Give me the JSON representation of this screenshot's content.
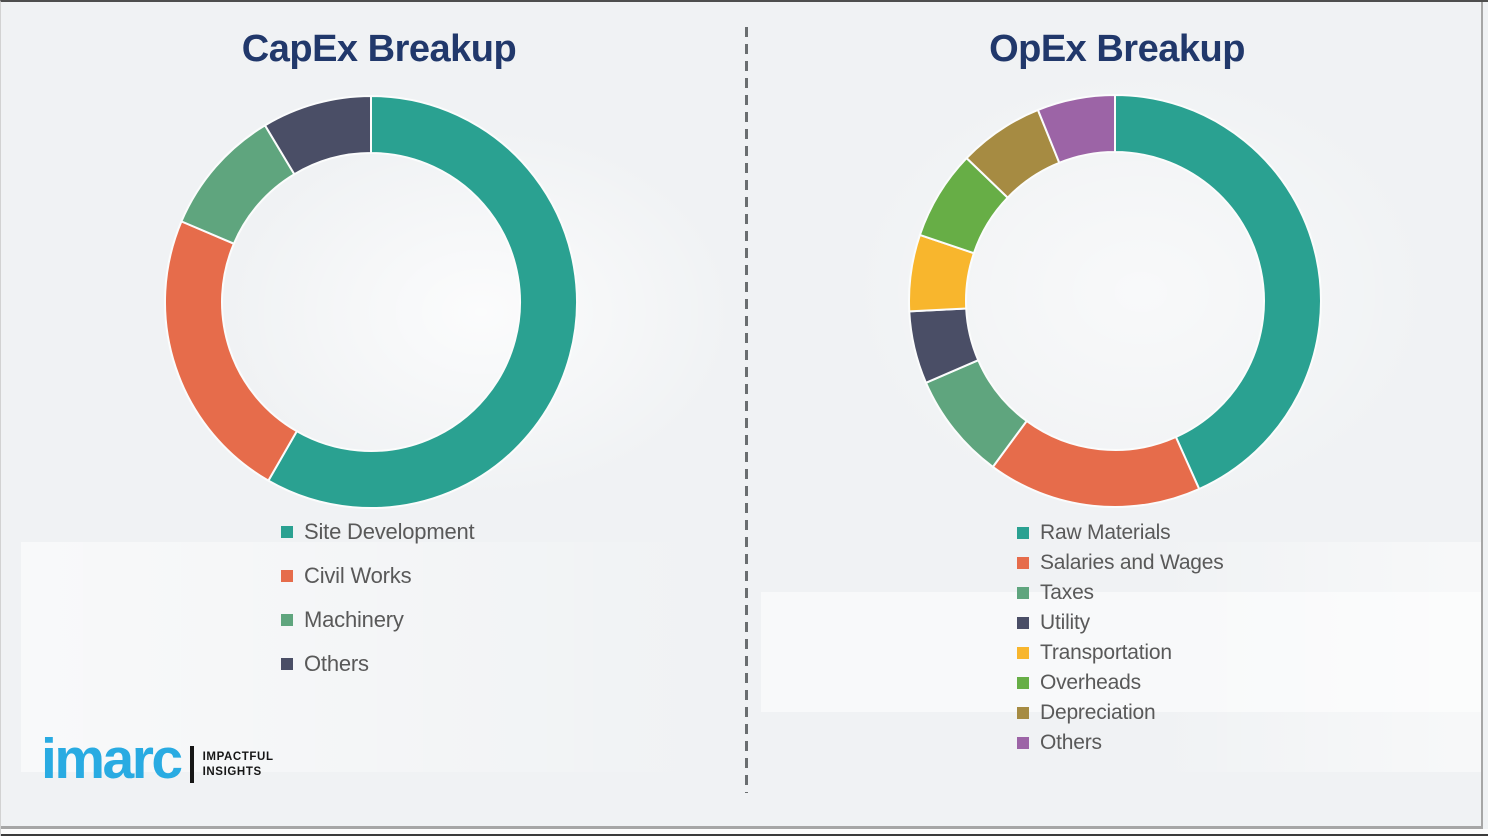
{
  "page": {
    "background_color": "#F0F2F4",
    "title_color": "#21386B",
    "legend_text_color": "#595959",
    "divider_style": "vertical dashed gray line between the two charts",
    "segment_separator_color": "#FBFCFC"
  },
  "chart_data": [
    {
      "type": "pie",
      "subtype": "donut",
      "title": "CapEx Breakup",
      "labels": [
        "Site Development",
        "Civil Works",
        "Machinery",
        "Others"
      ],
      "values": [
        58.3,
        23.1,
        10.0,
        8.6
      ],
      "colors": [
        "#2AA191",
        "#E66C4B",
        "#5FA57E",
        "#4A4E66"
      ],
      "start_angle_deg": 0,
      "direction": "clockwise",
      "legend_position": "below-left",
      "data_labels_shown": false
    },
    {
      "type": "pie",
      "subtype": "donut",
      "title": "OpEx Breakup",
      "labels": [
        "Raw Materials",
        "Salaries and Wages",
        "Taxes",
        "Utility",
        "Transportation",
        "Overheads",
        "Depreciation",
        "Others"
      ],
      "values": [
        43.3,
        16.8,
        8.4,
        5.7,
        6.0,
        7.0,
        6.7,
        6.1
      ],
      "colors": [
        "#2AA191",
        "#E66C4B",
        "#5FA57E",
        "#4A4E66",
        "#F8B62D",
        "#67AE46",
        "#A68B42",
        "#9C64A6"
      ],
      "start_angle_deg": 0,
      "direction": "clockwise",
      "legend_position": "below-left",
      "data_labels_shown": false
    }
  ],
  "logo": {
    "brand": "imarc",
    "brand_color": "#29ABE2",
    "tagline_line1": "IMPACTFUL",
    "tagline_line2": "INSIGHTS"
  }
}
